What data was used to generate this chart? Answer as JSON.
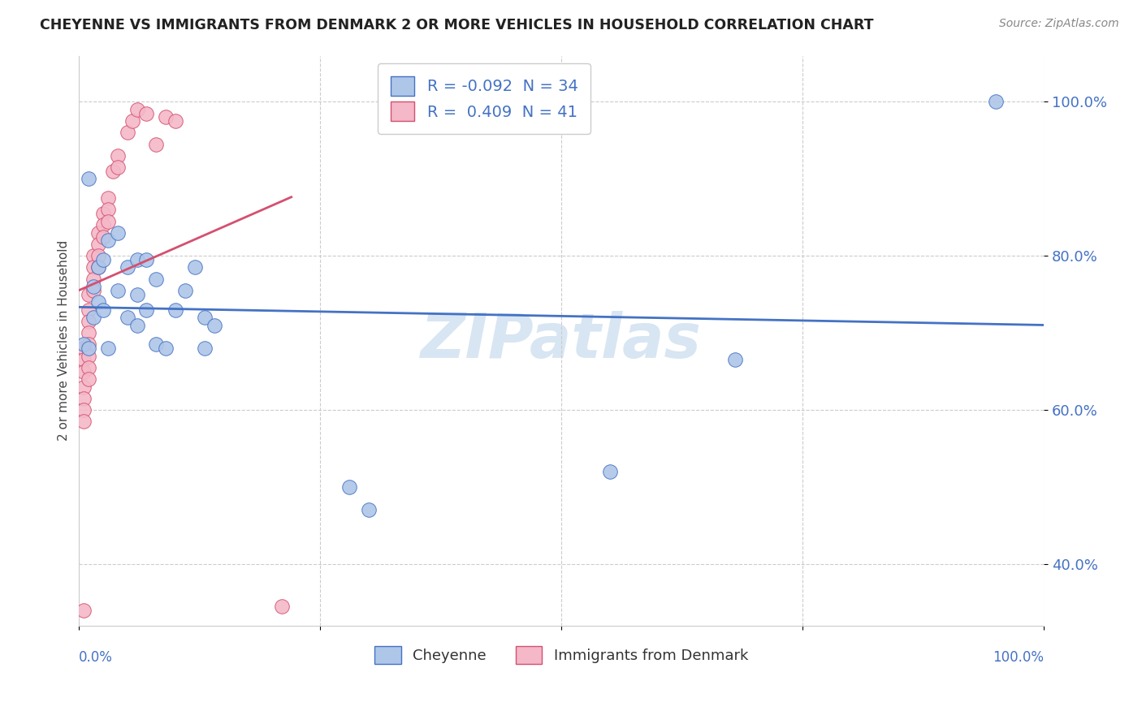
{
  "title": "CHEYENNE VS IMMIGRANTS FROM DENMARK 2 OR MORE VEHICLES IN HOUSEHOLD CORRELATION CHART",
  "source": "Source: ZipAtlas.com",
  "ylabel": "2 or more Vehicles in Household",
  "watermark": "ZIPatlas",
  "legend_label1": "Cheyenne",
  "legend_label2": "Immigrants from Denmark",
  "cheyenne_color": "#aec6e8",
  "immigrants_color": "#f4b8c8",
  "line1_color": "#4472c4",
  "line2_color": "#d45070",
  "cheyenne_R": -0.092,
  "cheyenne_N": 34,
  "immigrants_R": 0.409,
  "immigrants_N": 41,
  "xlim": [
    0.0,
    1.0
  ],
  "ylim": [
    0.32,
    1.06
  ],
  "yticks": [
    0.4,
    0.6,
    0.8,
    1.0
  ],
  "ytick_labels": [
    "40.0%",
    "60.0%",
    "80.0%",
    "100.0%"
  ],
  "background_color": "#ffffff",
  "grid_color": "#cccccc",
  "cheyenne_x": [
    0.005,
    0.01,
    0.01,
    0.015,
    0.015,
    0.02,
    0.02,
    0.025,
    0.025,
    0.03,
    0.03,
    0.04,
    0.04,
    0.05,
    0.05,
    0.06,
    0.06,
    0.06,
    0.07,
    0.07,
    0.08,
    0.08,
    0.09,
    0.1,
    0.11,
    0.12,
    0.13,
    0.13,
    0.14,
    0.28,
    0.3,
    0.55,
    0.68,
    0.95
  ],
  "cheyenne_y": [
    0.685,
    0.9,
    0.68,
    0.76,
    0.72,
    0.785,
    0.74,
    0.795,
    0.73,
    0.82,
    0.68,
    0.83,
    0.755,
    0.785,
    0.72,
    0.795,
    0.75,
    0.71,
    0.795,
    0.73,
    0.77,
    0.685,
    0.68,
    0.73,
    0.755,
    0.785,
    0.72,
    0.68,
    0.71,
    0.5,
    0.47,
    0.52,
    0.665,
    1.0
  ],
  "immigrants_x": [
    0.005,
    0.005,
    0.005,
    0.005,
    0.005,
    0.005,
    0.005,
    0.01,
    0.01,
    0.01,
    0.01,
    0.01,
    0.01,
    0.01,
    0.01,
    0.015,
    0.015,
    0.015,
    0.015,
    0.02,
    0.02,
    0.02,
    0.02,
    0.025,
    0.025,
    0.025,
    0.03,
    0.03,
    0.03,
    0.035,
    0.04,
    0.04,
    0.05,
    0.055,
    0.06,
    0.07,
    0.08,
    0.09,
    0.1,
    0.21,
    0.005
  ],
  "immigrants_y": [
    0.68,
    0.665,
    0.65,
    0.63,
    0.615,
    0.6,
    0.585,
    0.75,
    0.73,
    0.715,
    0.7,
    0.685,
    0.67,
    0.655,
    0.64,
    0.8,
    0.785,
    0.77,
    0.755,
    0.83,
    0.815,
    0.8,
    0.785,
    0.855,
    0.84,
    0.825,
    0.875,
    0.86,
    0.845,
    0.91,
    0.93,
    0.915,
    0.96,
    0.975,
    0.99,
    0.985,
    0.945,
    0.98,
    0.975,
    0.345,
    0.34
  ]
}
